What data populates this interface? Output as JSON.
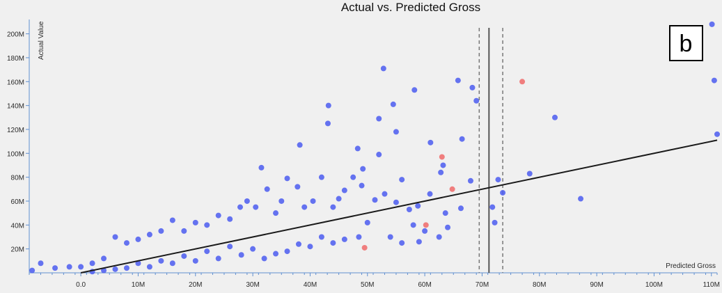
{
  "chart_data": {
    "type": "scatter",
    "title": "Actual vs. Predicted Gross",
    "xlabel": "Predicted Gross",
    "ylabel": "Actual Value",
    "panel_label": "b",
    "xlim": [
      -9,
      111
    ],
    "ylim": [
      0,
      212
    ],
    "x_ticks": [
      0,
      10,
      20,
      30,
      40,
      50,
      60,
      70,
      80,
      90,
      100,
      110
    ],
    "x_tick_labels": [
      "0.0",
      "10M",
      "20M",
      "30M",
      "40M",
      "50M",
      "60M",
      "70M",
      "80M",
      "90M",
      "100M",
      "110M"
    ],
    "y_ticks": [
      20,
      40,
      60,
      80,
      100,
      120,
      140,
      160,
      180,
      200
    ],
    "y_tick_labels": [
      "20M",
      "40M",
      "60M",
      "80M",
      "100M",
      "120M",
      "140M",
      "160M",
      "180M",
      "200M"
    ],
    "regression_line": {
      "x": [
        0,
        111
      ],
      "y": [
        0,
        111
      ]
    },
    "vertical_lines": [
      {
        "x": 71.2,
        "style": "solid"
      },
      {
        "x": 69.5,
        "style": "dashed"
      },
      {
        "x": 73.6,
        "style": "dashed"
      }
    ],
    "colors": {
      "blue": "#4b5cf0",
      "red": "#f06a6a",
      "line": "#1a1a1a",
      "axis": "#5f8fd0"
    },
    "series": [
      {
        "color": "blue",
        "points": [
          [
            110.1,
            208
          ],
          [
            111.0,
            116
          ],
          [
            110.5,
            161
          ],
          [
            52.8,
            171
          ],
          [
            58.2,
            153
          ],
          [
            65.8,
            161
          ],
          [
            68.3,
            155
          ],
          [
            69.0,
            144
          ],
          [
            54.5,
            141
          ],
          [
            43.2,
            140
          ],
          [
            82.7,
            130
          ],
          [
            52.0,
            129
          ],
          [
            43.1,
            125
          ],
          [
            55.0,
            118
          ],
          [
            66.5,
            112
          ],
          [
            61.0,
            109
          ],
          [
            38.2,
            107
          ],
          [
            48.3,
            104
          ],
          [
            52.0,
            99
          ],
          [
            63.2,
            90
          ],
          [
            62.8,
            84
          ],
          [
            78.3,
            83
          ],
          [
            72.8,
            78
          ],
          [
            73.6,
            67
          ],
          [
            87.2,
            62
          ],
          [
            68.0,
            77
          ],
          [
            71.8,
            55
          ],
          [
            72.2,
            42
          ],
          [
            66.3,
            54
          ],
          [
            63.6,
            50
          ],
          [
            62.5,
            30
          ],
          [
            59.0,
            26
          ],
          [
            56.0,
            78
          ],
          [
            60.9,
            66
          ],
          [
            58.8,
            56
          ],
          [
            57.3,
            53
          ],
          [
            55.0,
            59
          ],
          [
            53.0,
            66
          ],
          [
            51.3,
            61
          ],
          [
            49.2,
            87
          ],
          [
            49.0,
            73
          ],
          [
            47.5,
            80
          ],
          [
            46.0,
            69
          ],
          [
            45.0,
            62
          ],
          [
            44.0,
            55
          ],
          [
            42.0,
            80
          ],
          [
            40.5,
            60
          ],
          [
            39.0,
            55
          ],
          [
            37.8,
            72
          ],
          [
            36.0,
            79
          ],
          [
            35.0,
            60
          ],
          [
            34.0,
            50
          ],
          [
            32.5,
            70
          ],
          [
            31.5,
            88
          ],
          [
            30.5,
            55
          ],
          [
            29.0,
            60
          ],
          [
            27.8,
            55
          ],
          [
            26.0,
            45
          ],
          [
            24.0,
            48
          ],
          [
            22.0,
            40
          ],
          [
            20.0,
            42
          ],
          [
            18.0,
            35
          ],
          [
            16.0,
            44
          ],
          [
            14.0,
            35
          ],
          [
            12.0,
            32
          ],
          [
            10.0,
            28
          ],
          [
            8.0,
            25
          ],
          [
            6.0,
            30
          ],
          [
            4.0,
            12
          ],
          [
            2.0,
            8
          ],
          [
            0.0,
            5
          ],
          [
            -2.0,
            5
          ],
          [
            -4.5,
            4
          ],
          [
            -7.0,
            8
          ],
          [
            -8.5,
            2
          ],
          [
            48.5,
            30
          ],
          [
            50.0,
            42
          ],
          [
            46.0,
            28
          ],
          [
            44.0,
            25
          ],
          [
            42.0,
            30
          ],
          [
            40.0,
            22
          ],
          [
            38.0,
            24
          ],
          [
            36.0,
            18
          ],
          [
            34.0,
            16
          ],
          [
            32.0,
            12
          ],
          [
            30.0,
            20
          ],
          [
            28.0,
            15
          ],
          [
            26.0,
            22
          ],
          [
            24.0,
            12
          ],
          [
            22.0,
            18
          ],
          [
            20.0,
            10
          ],
          [
            18.0,
            14
          ],
          [
            16.0,
            8
          ],
          [
            14.0,
            10
          ],
          [
            12.0,
            5
          ],
          [
            10.0,
            8
          ],
          [
            8.0,
            4
          ],
          [
            6.0,
            3
          ],
          [
            4.0,
            2
          ],
          [
            2.0,
            1
          ],
          [
            54.0,
            30
          ],
          [
            56.0,
            25
          ],
          [
            58.0,
            40
          ],
          [
            60.0,
            35
          ],
          [
            64.0,
            38
          ]
        ]
      },
      {
        "color": "red",
        "points": [
          [
            77.0,
            160
          ],
          [
            63.0,
            97
          ],
          [
            64.8,
            70
          ],
          [
            60.2,
            40
          ],
          [
            49.5,
            21
          ]
        ]
      }
    ]
  }
}
